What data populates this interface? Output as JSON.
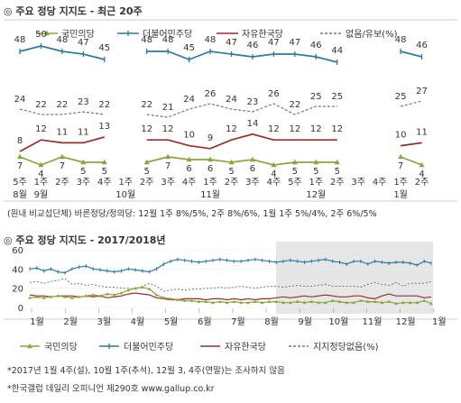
{
  "top": {
    "title": "◎ 주요 정당 지지도 - 최근 20주",
    "note": "(원내 비교섭단체) 바른정당/정의당: 12월 1주 8%/5%, 2주 8%/6%, 1월 1주 5%/4%, 2주 6%/5%"
  },
  "bottom": {
    "title": "◎ 주요 정당 지지도 - 2017/2018년"
  },
  "footnotes": {
    "line1": "*2017년 1월 4주(설), 10월 1주(추석), 12월 3, 4주(연말)는 조사하지 않음",
    "line2": "*한국갤럽 데일리 오피니언 제290호 www.gallup.co.kr"
  },
  "colors": {
    "kookmin": "#8aa63a",
    "minju": "#2b7aa8",
    "liberty": "#9b2d2d",
    "none": "#777777"
  },
  "chart_data": [
    {
      "type": "line",
      "title": "주요 정당 지지도 - 최근 20주",
      "legend": [
        "국민의당",
        "더불어민주당",
        "자유한국당",
        "없음/유보(%)"
      ],
      "legend_position": "top",
      "tick_top": [
        "5주",
        "1주",
        "2주",
        "3주",
        "4주",
        "1주",
        "2주",
        "3주",
        "4주",
        "1주",
        "2주",
        "3주",
        "4주",
        "5주",
        "1주",
        "2주",
        "3주",
        "4주",
        "1주",
        "2주"
      ],
      "tick_bottom": [
        "8월",
        "9월",
        "",
        "",
        "",
        "10월",
        "",
        "",
        "",
        "11월",
        "",
        "",
        "",
        "",
        "12월",
        "",
        "",
        "",
        "1월",
        ""
      ],
      "series": [
        {
          "name": "더불어민주당",
          "values": [
            48,
            50,
            48,
            47,
            45,
            null,
            48,
            48,
            45,
            48,
            47,
            46,
            47,
            47,
            46,
            44,
            null,
            null,
            48,
            46
          ]
        },
        {
          "name": "없음/유보(%)",
          "values": [
            24,
            22,
            22,
            23,
            22,
            null,
            22,
            21,
            24,
            26,
            24,
            23,
            26,
            22,
            25,
            25,
            null,
            null,
            25,
            27
          ]
        },
        {
          "name": "자유한국당",
          "values": [
            8,
            12,
            11,
            11,
            13,
            null,
            12,
            12,
            10,
            9,
            12,
            14,
            12,
            12,
            12,
            12,
            null,
            null,
            10,
            11
          ]
        },
        {
          "name": "국민의당",
          "values": [
            7,
            4,
            7,
            5,
            5,
            null,
            5,
            7,
            6,
            6,
            5,
            6,
            4,
            5,
            5,
            5,
            null,
            null,
            7,
            4
          ]
        }
      ]
    },
    {
      "type": "line",
      "title": "주요 정당 지지도 - 2017/2018년",
      "legend": [
        "국민의당",
        "더불어민주당",
        "자유한국당",
        "지지정당없음(%)"
      ],
      "legend_position": "bottom",
      "ylim": [
        0,
        60
      ],
      "yticks": [
        0,
        20,
        40,
        60
      ],
      "months": [
        "1월",
        "2월",
        "3월",
        "4월",
        "5월",
        "6월",
        "7월",
        "8월",
        "9월",
        "10월",
        "11월",
        "12월",
        "1월"
      ],
      "series": [
        {
          "name": "더불어민주당",
          "values": [
            40,
            41,
            38,
            40,
            37,
            36,
            40,
            42,
            43,
            40,
            39,
            38,
            37,
            38,
            40,
            39,
            38,
            37,
            40,
            45,
            48,
            50,
            49,
            48,
            47,
            48,
            49,
            50,
            49,
            48,
            48,
            49,
            50,
            49,
            48,
            47,
            48,
            49,
            48,
            47,
            48,
            49,
            50,
            48,
            47,
            45,
            48,
            48,
            45,
            48,
            47,
            46,
            47,
            47,
            46,
            44,
            48,
            46
          ]
        },
        {
          "name": "지지정당없음(%)",
          "values": [
            26,
            27,
            25,
            27,
            28,
            30,
            24,
            25,
            23,
            24,
            22,
            21,
            21,
            20,
            20,
            19,
            22,
            25,
            22,
            17,
            18,
            19,
            18,
            19,
            19,
            20,
            20,
            21,
            20,
            21,
            22,
            21,
            20,
            21,
            22,
            22,
            21,
            22,
            23,
            22,
            22,
            23,
            24,
            22,
            22,
            22,
            22,
            21,
            24,
            26,
            24,
            23,
            26,
            22,
            25,
            25,
            25,
            27
          ]
        },
        {
          "name": "자유한국당",
          "values": [
            13,
            12,
            12,
            11,
            12,
            12,
            12,
            11,
            12,
            11,
            12,
            10,
            11,
            12,
            14,
            15,
            14,
            13,
            10,
            9,
            8,
            8,
            9,
            9,
            9,
            8,
            9,
            9,
            8,
            9,
            8,
            9,
            8,
            9,
            9,
            10,
            11,
            10,
            11,
            12,
            11,
            12,
            13,
            12,
            11,
            11,
            12,
            12,
            10,
            9,
            12,
            14,
            12,
            12,
            12,
            12,
            10,
            11
          ]
        },
        {
          "name": "국민의당",
          "values": [
            10,
            11,
            10,
            11,
            12,
            11,
            10,
            11,
            12,
            13,
            12,
            14,
            13,
            15,
            18,
            20,
            21,
            19,
            13,
            10,
            9,
            8,
            7,
            7,
            6,
            6,
            5,
            6,
            5,
            6,
            5,
            5,
            6,
            5,
            6,
            6,
            5,
            5,
            6,
            5,
            6,
            5,
            5,
            7,
            6,
            5,
            5,
            7,
            6,
            6,
            5,
            6,
            4,
            5,
            5,
            5,
            7,
            4
          ]
        }
      ]
    }
  ]
}
